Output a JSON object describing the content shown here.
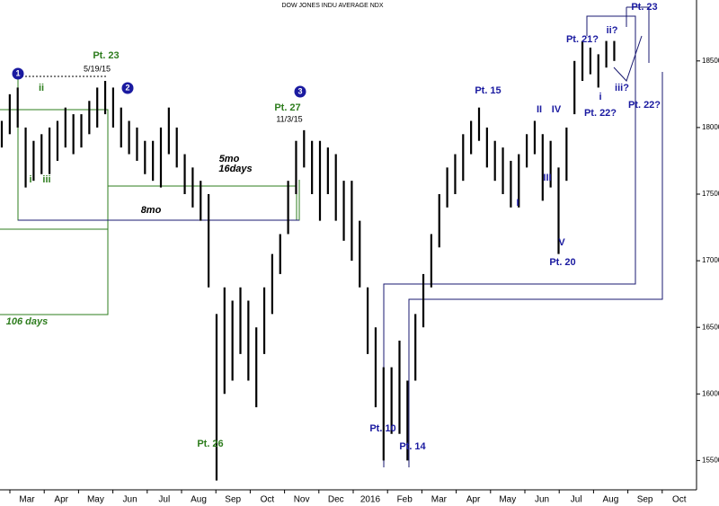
{
  "chart_data": {
    "type": "range-bar",
    "title": "DOW JONES INDU AVERAGE NDX",
    "color": "#000000",
    "high": [
      18050,
      18250,
      18300,
      18000,
      17900,
      17950,
      18000,
      18050,
      18150,
      18100,
      18100,
      18200,
      18300,
      18350,
      18300,
      18150,
      18050,
      18000,
      17900,
      17900,
      18000,
      18150,
      18000,
      17800,
      17700,
      17600,
      17500,
      16600,
      16800,
      16700,
      16800,
      16700,
      16500,
      16800,
      17050,
      17200,
      17600,
      17900,
      17980,
      17900,
      17900,
      17850,
      17800,
      17600,
      17600,
      17300,
      16800,
      16500,
      16200,
      16200,
      16400,
      16100,
      16600,
      16900,
      17200,
      17500,
      17700,
      17800,
      17950,
      18050,
      18150,
      18000,
      17900,
      17850,
      17750,
      17800,
      17950,
      18050,
      17950,
      17900,
      17700,
      18000,
      18500,
      18650,
      18600,
      18550,
      18650,
      18650
    ],
    "low": [
      17850,
      17950,
      18000,
      17550,
      17600,
      17650,
      17650,
      17750,
      17850,
      17800,
      17850,
      17950,
      18000,
      18100,
      18000,
      17850,
      17800,
      17750,
      17650,
      17600,
      17550,
      17800,
      17700,
      17500,
      17400,
      17300,
      16800,
      15350,
      16000,
      16100,
      16300,
      16100,
      15900,
      16300,
      16600,
      16900,
      17200,
      17500,
      17700,
      17500,
      17300,
      17500,
      17300,
      17150,
      17000,
      16800,
      16300,
      15900,
      15500,
      15700,
      15700,
      15500,
      16100,
      16500,
      16800,
      17100,
      17400,
      17500,
      17600,
      17800,
      17900,
      17700,
      17600,
      17500,
      17400,
      17400,
      17700,
      17800,
      17450,
      17550,
      17050,
      17600,
      18100,
      18350,
      18400,
      18300,
      18450,
      18500
    ],
    "categories": [
      "Mar",
      "Apr",
      "May",
      "Jun",
      "Jul",
      "Aug",
      "Sep",
      "Oct",
      "Nov",
      "Dec",
      "2016",
      "Feb",
      "Mar",
      "Apr",
      "May",
      "Jun",
      "Jul",
      "Aug",
      "Sep",
      "Oct"
    ],
    "ylim": [
      15280,
      18890
    ],
    "yticks": [
      15500,
      16000,
      16500,
      17000,
      17500,
      18000,
      18500
    ],
    "annotations": [
      {
        "text": "1",
        "color": "#1a1aa0"
      },
      {
        "text": "2",
        "color": "#1a1aa0"
      },
      {
        "text": "3",
        "color": "#1a1aa0"
      },
      {
        "text": "Pt. 23",
        "color": "#2e7d1e"
      },
      {
        "text": "5/19/15",
        "color": "#000000"
      },
      {
        "text": "ii",
        "color": "#2e7d1e"
      },
      {
        "text": "i",
        "color": "#2e7d1e"
      },
      {
        "text": "iii",
        "color": "#2e7d1e"
      },
      {
        "text": "Pt. 27",
        "color": "#2e7d1e"
      },
      {
        "text": "11/3/15",
        "color": "#000000"
      },
      {
        "text": "5mo",
        "color": "#000000"
      },
      {
        "text": "16days",
        "color": "#000000"
      },
      {
        "text": "8mo",
        "color": "#000000"
      },
      {
        "text": "106 days",
        "color": "#2e7d1e"
      },
      {
        "text": "Pt. 26",
        "color": "#2e7d1e"
      },
      {
        "text": "Pt. 10",
        "color": "#1a1aa0"
      },
      {
        "text": "Pt. 14",
        "color": "#1a1aa0"
      },
      {
        "text": "Pt. 15",
        "color": "#1a1aa0"
      },
      {
        "text": "II",
        "color": "#1a1aa0"
      },
      {
        "text": "IV",
        "color": "#1a1aa0"
      },
      {
        "text": "III",
        "color": "#1a1aa0"
      },
      {
        "text": "I",
        "color": "#1a1aa0"
      },
      {
        "text": "V",
        "color": "#1a1aa0"
      },
      {
        "text": "Pt. 20",
        "color": "#1a1aa0"
      },
      {
        "text": "Pt. 21?",
        "color": "#1a1aa0"
      },
      {
        "text": "ii?",
        "color": "#1a1aa0"
      },
      {
        "text": "i",
        "color": "#1a1aa0"
      },
      {
        "text": "iii?",
        "color": "#1a1aa0"
      },
      {
        "text": "Pt. 22?",
        "color": "#1a1aa0"
      },
      {
        "text": "Pt. 22?",
        "color": "#1a1aa0"
      },
      {
        "text": "Pt. 23",
        "color": "#1a1aa0"
      }
    ]
  }
}
